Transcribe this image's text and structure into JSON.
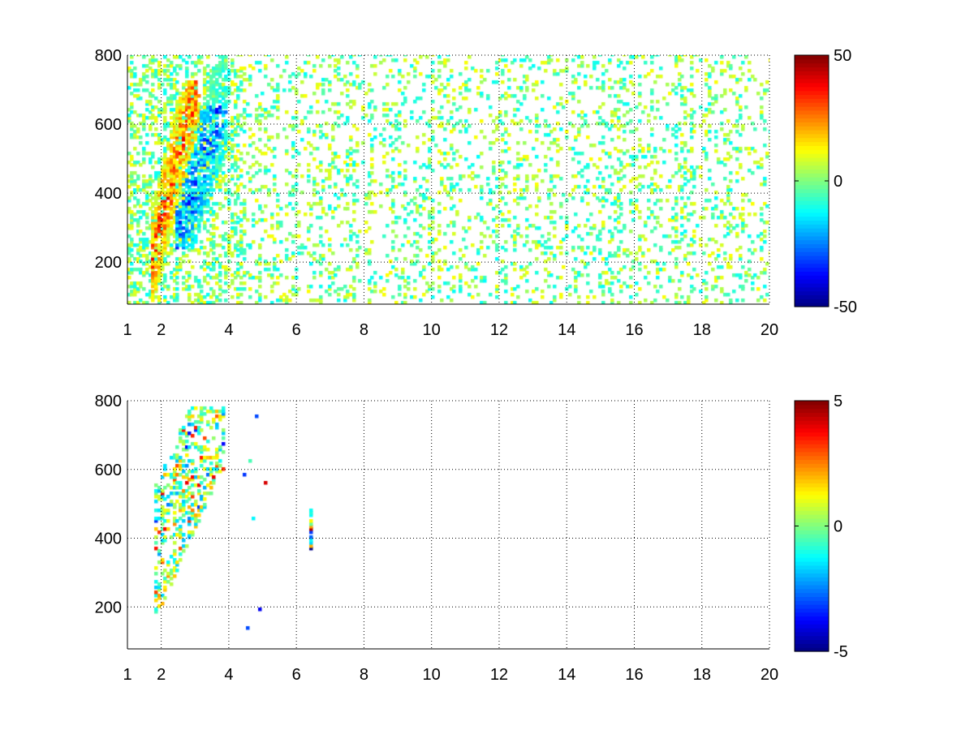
{
  "chart_data": [
    {
      "type": "heatmap",
      "title": "",
      "xlabel": "",
      "ylabel": "",
      "xlim": [
        1,
        20
      ],
      "ylim": [
        78,
        800
      ],
      "xticks": [
        "1",
        "2",
        "4",
        "6",
        "8",
        "10",
        "12",
        "14",
        "16",
        "18",
        "20"
      ],
      "xtick_values": [
        1,
        2,
        4,
        6,
        8,
        10,
        12,
        14,
        16,
        18,
        20
      ],
      "yticks": [
        "200",
        "400",
        "600",
        "800"
      ],
      "ytick_values": [
        200,
        400,
        600,
        800
      ],
      "grid": true,
      "colormap": "jet",
      "clim": [
        -50,
        50
      ],
      "colorbar_ticks": [
        "50",
        "0",
        "-50"
      ],
      "colorbar_tick_values": [
        50,
        0,
        -50
      ],
      "description_of_values": "positive band (to +45) along x 1.8-3.0, y 250-700; negative band (to -40) along x 2.5-3.8, y 250-600; sparse small values (-10..10) elsewhere",
      "seed": 7
    },
    {
      "type": "heatmap",
      "title": "",
      "xlabel": "",
      "ylabel": "",
      "xlim": [
        1,
        20
      ],
      "ylim": [
        78,
        800
      ],
      "xticks": [
        "1",
        "2",
        "4",
        "6",
        "8",
        "10",
        "12",
        "14",
        "16",
        "18",
        "20"
      ],
      "xtick_values": [
        1,
        2,
        4,
        6,
        8,
        10,
        12,
        14,
        16,
        18,
        20
      ],
      "yticks": [
        "200",
        "400",
        "600",
        "800"
      ],
      "ytick_values": [
        200,
        400,
        600,
        800
      ],
      "grid": true,
      "colormap": "jet",
      "clim": [
        -5,
        5
      ],
      "colorbar_ticks": [
        "5",
        "0",
        "-5"
      ],
      "colorbar_tick_values": [
        5,
        0,
        -5
      ],
      "description_of_values": "sparse values (-4..4) in x 1.8-3.8, y 220-770; isolated points near x 4.6-5.4 and column at x 6.4, y 370-480",
      "seed": 11
    }
  ]
}
